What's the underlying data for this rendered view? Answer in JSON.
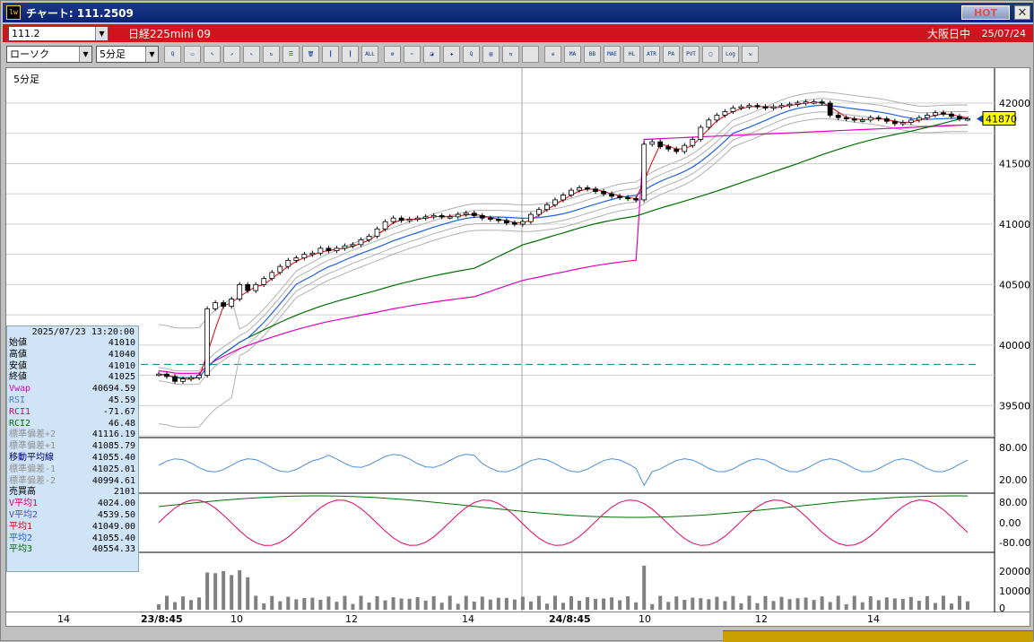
{
  "window": {
    "title": "チャート: 111.2509",
    "hot_label": "HOT",
    "close_label": "✕"
  },
  "symbol_bar": {
    "code": "111.2",
    "instrument": "日経225mini 09",
    "market": "大阪日中",
    "date": "25/07/24"
  },
  "toolbar": {
    "chart_type": "ローソク",
    "interval": "5分足",
    "icons": [
      "zoom-icon",
      "window-icon",
      "pen-icon",
      "trend-icon",
      "cursor-icon",
      "redo-icon",
      "memo-icon",
      "trash-icon",
      "bar-icon",
      "bar2-icon",
      "all-icon",
      "settings-icon",
      "tool-icon",
      "color-icon",
      "mark-icon",
      "search-icon",
      "chart-icon",
      "compare-icon",
      "blank-icon",
      "vol-icon",
      "ma-icon",
      "bb-icon",
      "mae-icon",
      "hl-icon",
      "atr-icon",
      "pa-icon",
      "pvt-icon",
      "box-icon",
      "log-icon",
      "export-icon"
    ],
    "icon_labels": [
      "Q",
      "▭",
      "✎",
      "↗",
      "↖",
      "↻",
      "☰",
      "🗑",
      "┃",
      "┃",
      "ALL",
      "⚙",
      "✂",
      "◪",
      "✚",
      "Q",
      "▤",
      "⇆",
      "",
      "≡",
      "MA",
      "BB",
      "MAE",
      "HL",
      "ATR",
      "PA",
      "PVT",
      "□",
      "Log",
      "⇲"
    ]
  },
  "chart": {
    "timeframe_label": "5分足",
    "current_price_label": "41870",
    "price_axis_labels": [
      "42000",
      "41500",
      "41000",
      "40500",
      "40000",
      "39500"
    ],
    "rsi_axis_labels": [
      "80.00",
      "20.00"
    ],
    "rci_axis_labels": [
      "80.00",
      "0.00",
      "-80.00"
    ],
    "volume_axis_labels": [
      "20000",
      "10000",
      "0"
    ],
    "x_axis_labels": [
      "14",
      "23/8:45",
      "10",
      "12",
      "14",
      "24/8:45",
      "10",
      "12",
      "14"
    ]
  },
  "chart_data": {
    "type": "candlestick",
    "price_ylim": [
      39250,
      42200
    ],
    "close_series": [
      39760,
      39740,
      39700,
      39720,
      39730,
      39750,
      40300,
      40350,
      40320,
      40380,
      40500,
      40450,
      40500,
      40550,
      40600,
      40650,
      40700,
      40720,
      40750,
      40760,
      40800,
      40780,
      40800,
      40820,
      40830,
      40870,
      40900,
      40960,
      41020,
      41050,
      41030,
      41040,
      41050,
      41060,
      41070,
      41060,
      41060,
      41080,
      41090,
      41070,
      41050,
      41040,
      41030,
      41010,
      41000,
      41020,
      41080,
      41120,
      41160,
      41200,
      41240,
      41280,
      41300,
      41290,
      41270,
      41250,
      41230,
      41220,
      41210,
      41200,
      41660,
      41680,
      41640,
      41620,
      41600,
      41650,
      41700,
      41800,
      41860,
      41900,
      41930,
      41960,
      41970,
      41980,
      41970,
      41960,
      41970,
      41980,
      41990,
      42000,
      42010,
      42010,
      42000,
      41900,
      41880,
      41870,
      41860,
      41860,
      41880,
      41870,
      41850,
      41830,
      41840,
      41860,
      41880,
      41900,
      41920,
      41910,
      41890,
      41870,
      41870
    ]
  },
  "info_panel": {
    "timestamp": "2025/07/23 13:20:00",
    "rows": [
      {
        "label": "始値",
        "value": "41010",
        "color": "#000000"
      },
      {
        "label": "高値",
        "value": "41040",
        "color": "#000000"
      },
      {
        "label": "安値",
        "value": "41010",
        "color": "#000000"
      },
      {
        "label": "終値",
        "value": "41025",
        "color": "#000000"
      },
      {
        "label": "Vwap",
        "value": "40694.59",
        "color": "#e000c0"
      },
      {
        "label": "RSI",
        "value": "45.59",
        "color": "#4a7acc"
      },
      {
        "label": "RCI1",
        "value": "-71.67",
        "color": "#e0006a"
      },
      {
        "label": "RCI2",
        "value": "46.48",
        "color": "#007000"
      },
      {
        "label": "標準偏差+2",
        "value": "41116.19",
        "color": "#909090"
      },
      {
        "label": "標準偏差+1",
        "value": "41085.79",
        "color": "#909090"
      },
      {
        "label": "移動平均線",
        "value": "41055.40",
        "color": "#000080"
      },
      {
        "label": "標準偏差-1",
        "value": "41025.01",
        "color": "#909090"
      },
      {
        "label": "標準偏差-2",
        "value": "40994.61",
        "color": "#909090"
      },
      {
        "label": "売買高",
        "value": "2101",
        "color": "#000000"
      },
      {
        "label": "V平均1",
        "value": "4024.00",
        "color": "#e0006a"
      },
      {
        "label": "V平均2",
        "value": "4539.50",
        "color": "#4a4acc"
      },
      {
        "label": "平均1",
        "value": "41049.00",
        "color": "#e00000"
      },
      {
        "label": "平均2",
        "value": "41055.40",
        "color": "#2060e0"
      },
      {
        "label": "平均3",
        "value": "40554.33",
        "color": "#007000"
      }
    ]
  }
}
